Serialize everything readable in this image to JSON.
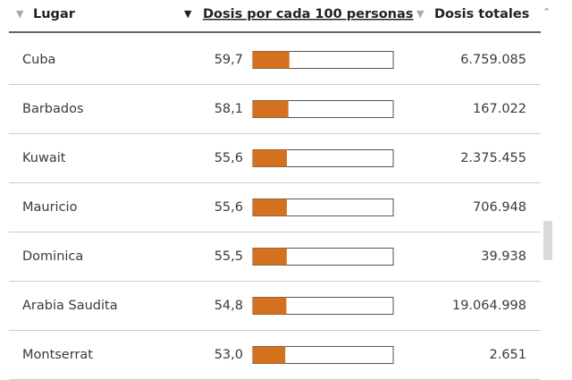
{
  "table": {
    "columns": [
      "Lugar",
      "Dosis por cada 100 personas",
      "Dosis totales"
    ],
    "bar_xlim": [
      0,
      230
    ],
    "bar_color": "#d4711f",
    "rows": [
      {
        "place": "Cuba",
        "dose": {
          "value": 59.7,
          "label": "59,7"
        },
        "total": "6.759.085"
      },
      {
        "place": "Barbados",
        "dose": {
          "value": 58.1,
          "label": "58,1"
        },
        "total": "167.022"
      },
      {
        "place": "Kuwait",
        "dose": {
          "value": 55.6,
          "label": "55,6"
        },
        "total": "2.375.455"
      },
      {
        "place": "Mauricio",
        "dose": {
          "value": 55.6,
          "label": "55,6"
        },
        "total": "706.948"
      },
      {
        "place": "Dominica",
        "dose": {
          "value": 55.5,
          "label": "55,5"
        },
        "total": "39.938"
      },
      {
        "place": "Arabia Saudita",
        "dose": {
          "value": 54.8,
          "label": "54,8"
        },
        "total": "19.064.998"
      },
      {
        "place": "Montserrat",
        "dose": {
          "value": 53.0,
          "label": "53,0"
        },
        "total": "2.651"
      }
    ]
  }
}
